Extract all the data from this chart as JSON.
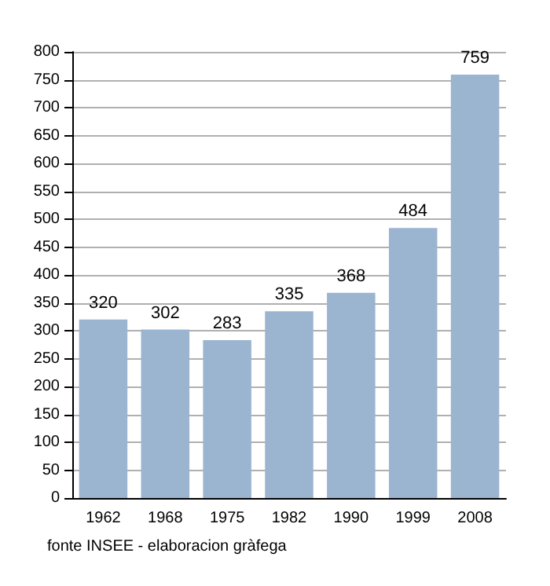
{
  "chart_data": {
    "type": "bar",
    "categories": [
      "1962",
      "1968",
      "1975",
      "1982",
      "1990",
      "1999",
      "2008"
    ],
    "values": [
      320,
      302,
      283,
      335,
      368,
      484,
      759
    ],
    "color": "#9bb4d0",
    "ylim": [
      0,
      800
    ],
    "yticks": [
      0,
      50,
      100,
      150,
      200,
      250,
      300,
      350,
      400,
      450,
      500,
      550,
      600,
      650,
      700,
      750,
      800
    ],
    "grid": "y",
    "data_labels": true,
    "annotations": [
      "fonte INSEE - elaboracion gràfega"
    ]
  }
}
